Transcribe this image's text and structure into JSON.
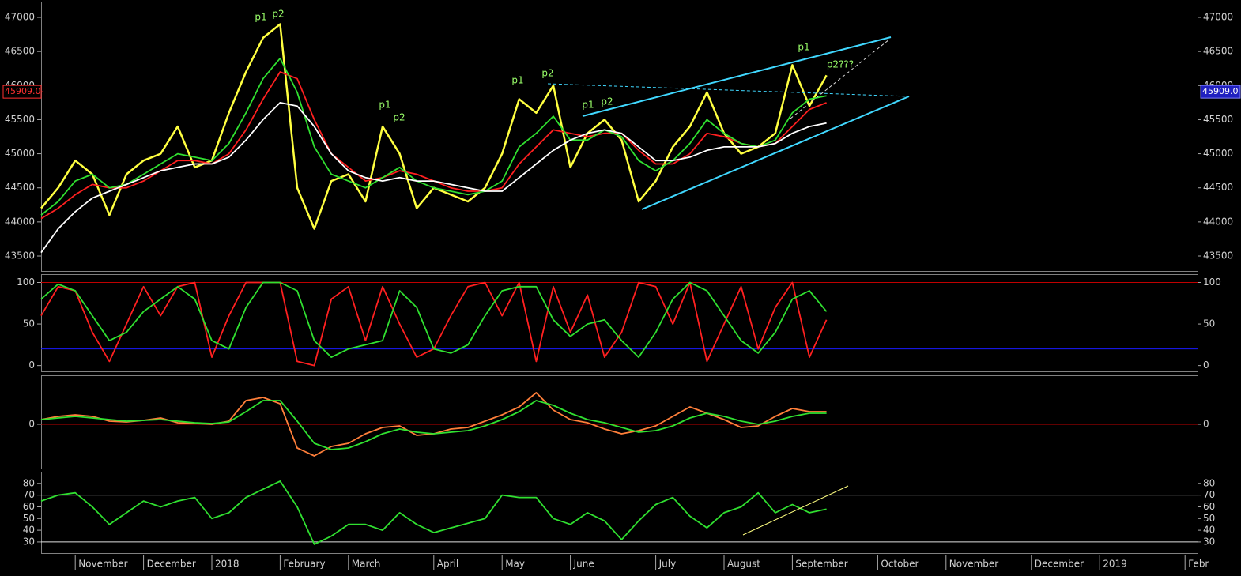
{
  "chart_data": [
    {
      "type": "line",
      "ylim": [
        43280,
        47220
      ],
      "yticks": [
        43500,
        44000,
        44500,
        45000,
        45500,
        46000,
        46500,
        47000
      ],
      "last_price": {
        "value": 45909,
        "label": "45909.0"
      },
      "annotations": [
        "p1",
        "p2",
        "p1",
        "p2",
        "p1",
        "p2",
        "p1",
        "p2",
        "p1",
        "p2???"
      ],
      "series": [
        {
          "color": "#ffff40",
          "values": [
            44200,
            44500,
            44900,
            44700,
            44100,
            44700,
            44900,
            45000,
            45400,
            44800,
            44900,
            45600,
            46200,
            46700,
            46900,
            44500,
            43900,
            44600,
            44700,
            44300,
            45400,
            45000,
            44200,
            44500,
            44400,
            44300,
            44500,
            45000,
            45800,
            45600,
            46000,
            44800,
            45300,
            45500,
            45200,
            44300,
            44600,
            45100,
            45400,
            45900,
            45300,
            45000,
            45100,
            45300,
            46300,
            45700,
            46150,
            null,
            null,
            null,
            null,
            null,
            null,
            null,
            null,
            null,
            null,
            null,
            null,
            null,
            null,
            null,
            null,
            null,
            null,
            null,
            null,
            null
          ]
        },
        {
          "color": "#ff2020",
          "values": [
            44050,
            44200,
            44400,
            44550,
            44500,
            44500,
            44600,
            44750,
            44900,
            44900,
            44850,
            45000,
            45350,
            45800,
            46200,
            46100,
            45500,
            45000,
            44800,
            44600,
            44650,
            44750,
            44700,
            44600,
            44500,
            44450,
            44450,
            44500,
            44850,
            45100,
            45350,
            45300,
            45250,
            45300,
            45300,
            45050,
            44850,
            44850,
            45000,
            45300,
            45250,
            45150,
            45100,
            45150,
            45400,
            45650,
            45750,
            null,
            null,
            null,
            null,
            null,
            null,
            null,
            null,
            null,
            null,
            null,
            null,
            null,
            null,
            null,
            null,
            null,
            null,
            null,
            null,
            null
          ]
        },
        {
          "color": "#30e030",
          "values": [
            44100,
            44300,
            44600,
            44700,
            44500,
            44550,
            44700,
            44850,
            45000,
            44950,
            44900,
            45150,
            45600,
            46100,
            46400,
            45900,
            45100,
            44700,
            44600,
            44500,
            44650,
            44800,
            44600,
            44500,
            44450,
            44400,
            44450,
            44600,
            45100,
            45300,
            45550,
            45200,
            45200,
            45350,
            45250,
            44900,
            44750,
            44900,
            45150,
            45500,
            45300,
            45150,
            45100,
            45200,
            45600,
            45800,
            45850,
            null,
            null,
            null,
            null,
            null,
            null,
            null,
            null,
            null,
            null,
            null,
            null,
            null,
            null,
            null,
            null,
            null,
            null,
            null,
            null,
            null
          ]
        },
        {
          "color": "#ffffff",
          "values": [
            43550,
            43900,
            44150,
            44350,
            44450,
            44550,
            44650,
            44750,
            44800,
            44850,
            44850,
            44950,
            45200,
            45500,
            45750,
            45700,
            45400,
            45000,
            44750,
            44650,
            44600,
            44650,
            44600,
            44600,
            44550,
            44500,
            44450,
            44450,
            44650,
            44850,
            45050,
            45200,
            45300,
            45350,
            45300,
            45100,
            44900,
            44900,
            44950,
            45050,
            45100,
            45100,
            45100,
            45150,
            45300,
            45400,
            45450,
            null,
            null,
            null,
            null,
            null,
            null,
            null,
            null,
            null,
            null,
            null,
            null,
            null,
            null,
            null,
            null,
            null,
            null,
            null,
            null,
            null
          ]
        }
      ]
    },
    {
      "type": "line",
      "ylim": [
        -7,
        110
      ],
      "yticks": [
        0,
        50,
        100
      ],
      "reference_lines": [
        {
          "value": 20,
          "color": "#1a1aff"
        },
        {
          "value": 80,
          "color": "#1a1aff"
        },
        {
          "value": 100,
          "color": "#c00000"
        }
      ],
      "series": [
        {
          "color": "#ff2020",
          "values": [
            60,
            95,
            90,
            40,
            5,
            50,
            95,
            60,
            95,
            100,
            10,
            60,
            100,
            100,
            100,
            5,
            0,
            80,
            95,
            30,
            95,
            50,
            10,
            20,
            60,
            95,
            100,
            60,
            100,
            5,
            95,
            40,
            85,
            10,
            40,
            100,
            95,
            50,
            100,
            5,
            50,
            95,
            20,
            70,
            100,
            10,
            55,
            null,
            null,
            null,
            null,
            null,
            null,
            null,
            null,
            null,
            null,
            null,
            null,
            null,
            null,
            null,
            null,
            null,
            null,
            null,
            null,
            null
          ]
        },
        {
          "color": "#30e030",
          "values": [
            80,
            98,
            90,
            60,
            30,
            40,
            65,
            80,
            95,
            80,
            30,
            20,
            70,
            100,
            100,
            90,
            30,
            10,
            20,
            25,
            30,
            90,
            70,
            20,
            15,
            25,
            60,
            90,
            95,
            95,
            55,
            35,
            50,
            55,
            30,
            10,
            40,
            80,
            100,
            90,
            60,
            30,
            15,
            40,
            80,
            90,
            65,
            null,
            null,
            null,
            null,
            null,
            null,
            null,
            null,
            null,
            null,
            null,
            null,
            null,
            null,
            null,
            null,
            null,
            null,
            null,
            null,
            null
          ]
        }
      ]
    },
    {
      "type": "line",
      "ylim": [
        -280,
        310
      ],
      "yticks": [
        0
      ],
      "reference_lines": [
        {
          "value": 0,
          "color": "#c00000"
        }
      ],
      "series": [
        {
          "color": "#ff7f3a",
          "values": [
            30,
            50,
            60,
            50,
            20,
            15,
            25,
            40,
            10,
            5,
            0,
            20,
            150,
            170,
            130,
            -150,
            -200,
            -140,
            -120,
            -60,
            -20,
            -10,
            -70,
            -60,
            -30,
            -20,
            20,
            60,
            110,
            200,
            90,
            30,
            10,
            -30,
            -60,
            -40,
            -10,
            50,
            110,
            70,
            30,
            -20,
            -10,
            50,
            100,
            80,
            80,
            null,
            null,
            null,
            null,
            null,
            null,
            null,
            null,
            null,
            null,
            null,
            null,
            null,
            null,
            null,
            null,
            null,
            null,
            null,
            null,
            null
          ]
        },
        {
          "color": "#30e030",
          "values": [
            30,
            40,
            50,
            40,
            30,
            20,
            25,
            30,
            20,
            10,
            5,
            15,
            80,
            150,
            150,
            20,
            -120,
            -160,
            -150,
            -110,
            -60,
            -30,
            -50,
            -60,
            -50,
            -40,
            -10,
            30,
            80,
            150,
            120,
            70,
            30,
            10,
            -20,
            -50,
            -40,
            -10,
            40,
            70,
            50,
            20,
            0,
            20,
            50,
            70,
            70,
            null,
            null,
            null,
            null,
            null,
            null,
            null,
            null,
            null,
            null,
            null,
            null,
            null,
            null,
            null,
            null,
            null,
            null,
            null,
            null,
            null
          ]
        }
      ]
    },
    {
      "type": "line",
      "ylim": [
        20.5,
        90
      ],
      "yticks": [
        30,
        40,
        50,
        60,
        70,
        80
      ],
      "reference_lines": [
        {
          "value": 30,
          "color": "#e0e0e0"
        },
        {
          "value": 70,
          "color": "#e0e0e0"
        }
      ],
      "categories": [
        null,
        null,
        "November",
        null,
        null,
        null,
        "December",
        null,
        null,
        null,
        "2018",
        null,
        null,
        null,
        "February",
        null,
        null,
        null,
        "March",
        null,
        null,
        null,
        null,
        "April",
        null,
        null,
        null,
        "May",
        null,
        null,
        null,
        "June",
        null,
        null,
        null,
        null,
        "July",
        null,
        null,
        null,
        "August",
        null,
        null,
        null,
        "September",
        null,
        null,
        null,
        null,
        "October",
        null,
        null,
        null,
        "November",
        null,
        null,
        null,
        null,
        "December",
        null,
        null,
        null,
        "2019",
        null,
        null,
        null,
        null,
        "Febr"
      ],
      "series": [
        {
          "color": "#30e030",
          "values": [
            65,
            70,
            72,
            60,
            45,
            55,
            65,
            60,
            65,
            68,
            50,
            55,
            68,
            75,
            82,
            60,
            28,
            35,
            45,
            45,
            40,
            55,
            45,
            38,
            42,
            46,
            50,
            70,
            68,
            68,
            50,
            45,
            55,
            48,
            32,
            48,
            62,
            68,
            52,
            42,
            55,
            60,
            72,
            55,
            62,
            55,
            58,
            null,
            null,
            null,
            null,
            null,
            null,
            null,
            null,
            null,
            null,
            null,
            null,
            null,
            null,
            null,
            null,
            null,
            null,
            null,
            null,
            null
          ]
        }
      ]
    }
  ]
}
